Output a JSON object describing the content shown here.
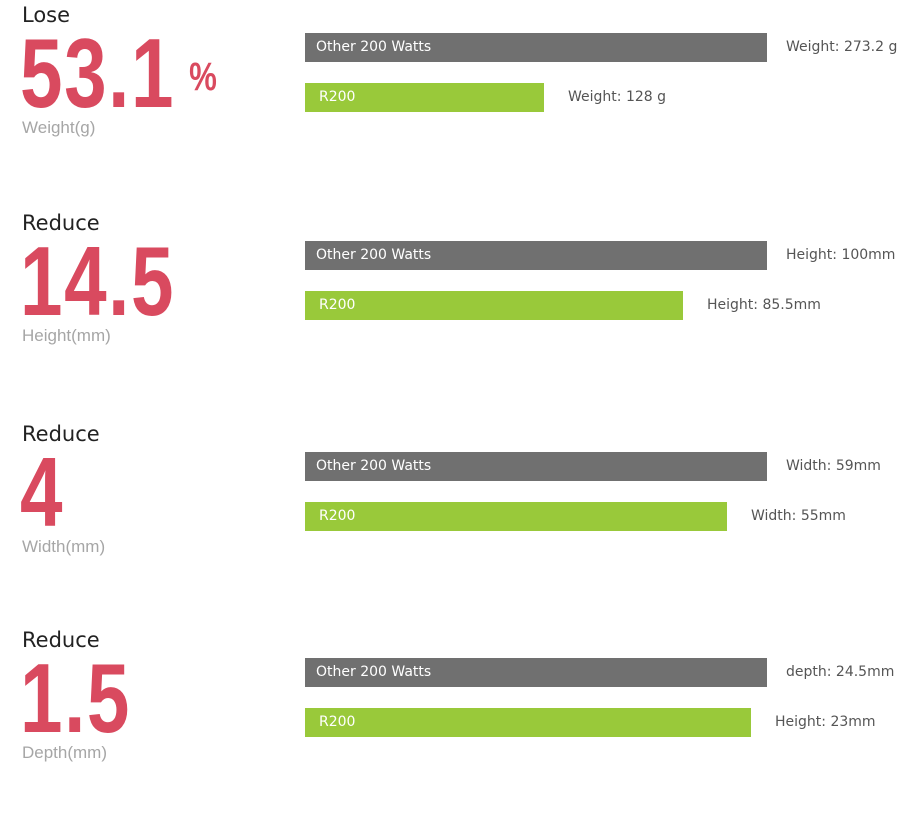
{
  "chart_data": {
    "type": "bar",
    "series_labels": {
      "other": "Other 200 Watts",
      "r200": "R200"
    },
    "colors": {
      "other": "#707070",
      "r200": "#99c93a",
      "accent": "#d94a5f"
    },
    "metrics": [
      {
        "heading": "Lose",
        "big_value": "53.1",
        "unit_sign": "%",
        "subtitle": "Weight(g)",
        "other_label": "Weight: 273.2 g",
        "r200_label": "Weight: 128 g",
        "other_value": 273.2,
        "r200_value": 128,
        "r200_fill": 0.517
      },
      {
        "heading": "Reduce",
        "big_value": "14.5",
        "unit_sign": "",
        "subtitle": "Height(mm)",
        "other_label": "Height: 100mm",
        "r200_label": "Height: 85.5mm",
        "other_value": 100,
        "r200_value": 85.5,
        "r200_fill": 0.818
      },
      {
        "heading": "Reduce",
        "big_value": "4",
        "unit_sign": "",
        "subtitle": "Width(mm)",
        "other_label": "Width: 59mm",
        "r200_label": "Width: 55mm",
        "other_value": 59,
        "r200_value": 55,
        "r200_fill": 0.913
      },
      {
        "heading": "Reduce",
        "big_value": "1.5",
        "unit_sign": "",
        "subtitle": "Depth(mm)",
        "other_label": "depth: 24.5mm",
        "r200_label": "Height: 23mm",
        "other_value": 24.5,
        "r200_value": 23,
        "r200_fill": 0.965
      }
    ]
  }
}
